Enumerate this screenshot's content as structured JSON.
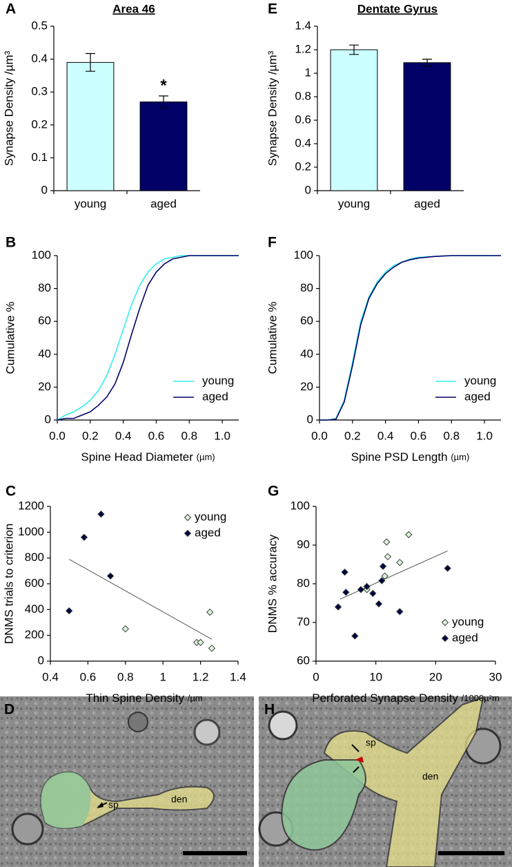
{
  "chart_data": [
    {
      "type": "bar",
      "panel": "A",
      "title": "Area 46",
      "ylabel": "Synapse Density /µm³",
      "categories": [
        "young",
        "aged"
      ],
      "values": [
        0.39,
        0.27
      ],
      "errors": [
        0.027,
        0.018
      ],
      "colors": [
        "#ccffff",
        "#000066"
      ],
      "annotations": [
        {
          "category": 1,
          "text": "*"
        }
      ],
      "ylim": [
        0,
        0.5
      ],
      "yticks": [
        0,
        0.1,
        0.2,
        0.3,
        0.4,
        0.5
      ]
    },
    {
      "type": "bar",
      "panel": "E",
      "title": "Dentate Gyrus",
      "ylabel": "Synapse Density /µm³",
      "categories": [
        "young",
        "aged"
      ],
      "values": [
        1.2,
        1.09
      ],
      "errors": [
        0.04,
        0.03
      ],
      "colors": [
        "#ccffff",
        "#000066"
      ],
      "annotations": [],
      "ylim": [
        0,
        1.4
      ],
      "yticks": [
        0,
        0.2,
        0.4,
        0.6,
        0.8,
        1,
        1.2,
        1.4
      ]
    },
    {
      "type": "line",
      "panel": "B",
      "ylabel": "Cumulative %",
      "xlabel": "Spine Head Diameter",
      "xlabel_unit": "(µm)",
      "x": [
        0,
        0.05,
        0.1,
        0.15,
        0.2,
        0.25,
        0.3,
        0.35,
        0.4,
        0.45,
        0.5,
        0.55,
        0.6,
        0.65,
        0.7,
        0.75,
        0.8,
        0.9,
        1.0,
        1.1
      ],
      "series": [
        {
          "name": "young",
          "color": "#33eeee",
          "values": [
            0,
            3,
            5,
            8,
            12,
            18,
            27,
            40,
            55,
            70,
            82,
            90,
            95,
            98,
            99,
            100,
            100,
            100,
            100,
            100
          ]
        },
        {
          "name": "aged",
          "color": "#000066",
          "values": [
            0,
            1,
            1,
            3,
            5,
            9,
            14,
            22,
            35,
            52,
            68,
            82,
            90,
            95,
            98,
            99,
            100,
            100,
            100,
            100
          ]
        }
      ],
      "xlim": [
        0,
        1.1
      ],
      "xticks": [
        {
          "value": 0,
          "label": "0.0"
        },
        0.2,
        0.4,
        0.6,
        0.8,
        {
          "value": 1,
          "label": "1.0"
        }
      ],
      "ylim": [
        0,
        100
      ],
      "yticks": [
        0,
        20,
        40,
        60,
        80,
        100
      ],
      "legend": "lower right"
    },
    {
      "type": "line",
      "panel": "F",
      "ylabel": "Cumulative %",
      "xlabel": "Spine PSD Length",
      "xlabel_unit": "(µm)",
      "x": [
        0,
        0.05,
        0.1,
        0.15,
        0.2,
        0.25,
        0.3,
        0.35,
        0.4,
        0.45,
        0.5,
        0.55,
        0.6,
        0.7,
        0.8,
        0.9,
        1.0,
        1.1
      ],
      "series": [
        {
          "name": "young",
          "color": "#33eeee",
          "values": [
            0,
            0,
            1,
            12,
            35,
            60,
            75,
            84,
            90,
            94,
            96,
            98,
            99,
            99.5,
            100,
            100,
            100,
            100
          ]
        },
        {
          "name": "aged",
          "color": "#000066",
          "values": [
            0,
            0,
            0.5,
            11,
            33,
            58,
            74,
            83,
            89,
            93,
            96,
            97.5,
            98.5,
            99.5,
            100,
            100,
            100,
            100
          ]
        }
      ],
      "xlim": [
        0,
        1.1
      ],
      "xticks": [
        {
          "value": 0,
          "label": "0.0"
        },
        0.2,
        0.4,
        0.6,
        0.8,
        {
          "value": 1,
          "label": "1.0"
        }
      ],
      "ylim": [
        0,
        100
      ],
      "yticks": [
        0,
        20,
        40,
        60,
        80,
        100
      ],
      "legend": "lower right"
    },
    {
      "type": "scatter",
      "panel": "C",
      "ylabel": "DNMS trials to criterion",
      "xlabel": "Thin Spine Density",
      "xlabel_unit": "/µm",
      "series": [
        {
          "name": "young",
          "color": "#dff0df",
          "x": [
            0.8,
            1.18,
            1.2,
            1.25,
            1.26
          ],
          "values": [
            250,
            145,
            145,
            380,
            100
          ]
        },
        {
          "name": "aged",
          "color": "#000044",
          "x": [
            0.5,
            0.58,
            0.67,
            0.72
          ],
          "values": [
            390,
            960,
            1140,
            660
          ]
        }
      ],
      "trendline": {
        "x": [
          0.5,
          1.26
        ],
        "y": [
          790,
          170
        ]
      },
      "xlim": [
        0.4,
        1.4
      ],
      "xticks": [
        0.4,
        0.6,
        0.8,
        1,
        1.2,
        1.4
      ],
      "ylim": [
        0,
        1200
      ],
      "yticks": [
        0,
        200,
        400,
        600,
        800,
        1000,
        1200
      ],
      "legend": "upper right"
    },
    {
      "type": "scatter",
      "panel": "G",
      "ylabel": "DNMS % accuracy",
      "xlabel": "Perforated Synapse Density",
      "xlabel_unit": "/1000µ²m",
      "series": [
        {
          "name": "young",
          "color": "#dff0df",
          "x": [
            8.5,
            11.5,
            12,
            11.8,
            14,
            15.5
          ],
          "values": [
            78.5,
            82,
            87,
            90.8,
            85.5,
            92.7
          ]
        },
        {
          "name": "aged",
          "color": "#000044",
          "x": [
            3.7,
            4.8,
            5,
            6.5,
            7.5,
            8.5,
            9.5,
            10.5,
            11,
            11.2,
            14,
            22
          ],
          "values": [
            74,
            83,
            77.8,
            66.5,
            78.5,
            79.3,
            77.5,
            74.8,
            80.8,
            84.5,
            72.8,
            84
          ]
        }
      ],
      "trendline": {
        "x": [
          4,
          22
        ],
        "y": [
          76,
          88.5
        ]
      },
      "xlim": [
        0,
        30
      ],
      "xticks": [
        0,
        10,
        20,
        30
      ],
      "ylim": [
        60,
        100
      ],
      "yticks": [
        60,
        70,
        80,
        90,
        100
      ],
      "legend": "lower right"
    }
  ],
  "micrographs": [
    {
      "panel": "D",
      "labels": [
        "sp",
        "den"
      ]
    },
    {
      "panel": "H",
      "labels": [
        "sp",
        "den"
      ]
    }
  ]
}
